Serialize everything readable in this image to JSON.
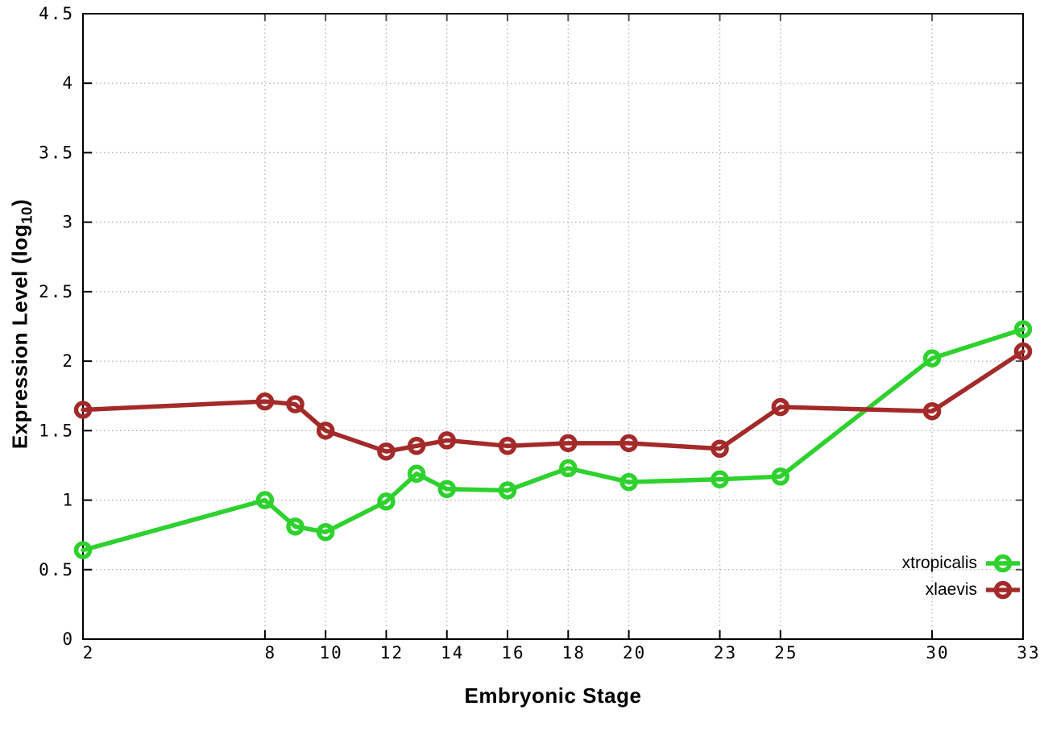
{
  "chart_data": {
    "type": "line",
    "title": "",
    "xlabel": "Embryonic Stage",
    "ylabel": "Expression Level (log10)",
    "ylabel_parts": {
      "main": "Expression Level (log",
      "sub": "10",
      "end": ")"
    },
    "x": [
      2,
      8,
      9,
      10,
      12,
      13,
      14,
      16,
      18,
      20,
      23,
      25,
      30,
      33
    ],
    "series": [
      {
        "name": "xtropicalis",
        "color": "#2ed12e",
        "marker": "open-circle",
        "values": [
          0.64,
          1.0,
          0.81,
          0.77,
          0.99,
          1.19,
          1.08,
          1.07,
          1.23,
          1.13,
          1.15,
          1.17,
          2.02,
          2.23
        ]
      },
      {
        "name": "xlaevis",
        "color": "#a42a2a",
        "marker": "open-circle",
        "values": [
          1.65,
          1.71,
          1.69,
          1.5,
          1.35,
          1.39,
          1.43,
          1.39,
          1.41,
          1.41,
          1.37,
          1.67,
          1.64,
          2.07
        ]
      }
    ],
    "xlim": [
      2,
      33
    ],
    "ylim": [
      0,
      4.5
    ],
    "xticks": {
      "values": [
        2,
        8,
        10,
        12,
        14,
        16,
        18,
        20,
        23,
        25,
        30,
        33
      ],
      "labels": [
        "2",
        "8",
        "10",
        "12",
        "14",
        "16",
        "18",
        "20",
        "23",
        "25",
        "30",
        "33"
      ]
    },
    "yticks": {
      "values": [
        0,
        0.5,
        1,
        1.5,
        2,
        2.5,
        3,
        3.5,
        4,
        4.5
      ],
      "labels": [
        "0",
        "0.5",
        "1",
        "1.5",
        "2",
        "2.5",
        "3",
        "3.5",
        "4",
        "4.5"
      ]
    },
    "grid": true,
    "legend_position": "inside bottom-right",
    "legend_entries": [
      "xtropicalis",
      "xlaevis"
    ]
  },
  "styles": {
    "background": "#ffffff",
    "axis_color": "#000000",
    "grid_color": "#b4b4b4",
    "text_color": "#000000"
  }
}
